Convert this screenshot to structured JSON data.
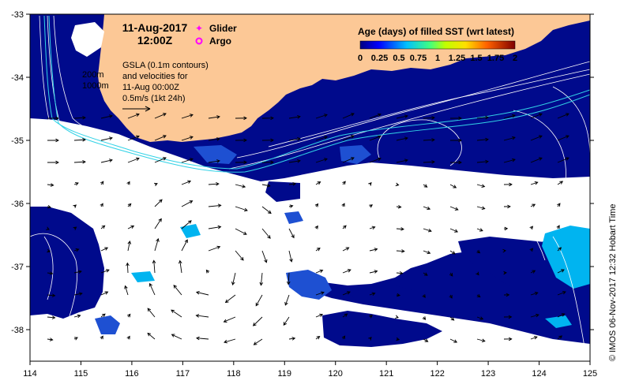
{
  "map": {
    "date_line": "11-Aug-2017",
    "time_line": "12:00Z",
    "legend_markers": [
      {
        "label": "Glider",
        "color": "#ff00ff",
        "symbol": "star-icon"
      },
      {
        "label": "Argo",
        "color": "#ff00ff",
        "symbol": "circle-icon"
      }
    ],
    "gsla_note": [
      "GSLA (0.1m contours)",
      "and velocities for",
      "11-Aug 00:00Z",
      "0.5m/s (1kt 24h)"
    ],
    "bathymetry_labels": [
      "200m",
      "1000m"
    ],
    "colorbar": {
      "title": "Age (days) of filled SST (wrt latest)",
      "tick_labels": [
        "0",
        "0.25",
        "0.5",
        "0.75",
        "1",
        "1.25",
        "1.5",
        "1.75",
        "2"
      ],
      "min": 0,
      "max": 2
    },
    "x_axis": {
      "ticks": [
        "114",
        "115",
        "116",
        "117",
        "118",
        "119",
        "120",
        "121",
        "122",
        "123",
        "124",
        "125"
      ],
      "min": 114,
      "max": 125
    },
    "y_axis": {
      "ticks": [
        "-33",
        "-34",
        "-35",
        "-36",
        "-37",
        "-38"
      ],
      "min": -38.5,
      "max": -33
    },
    "credit": "© IMOS 06-Nov-2017 12:32 Hobart Time",
    "colors": {
      "land": "#fcc896",
      "deep_water": "#000a8c",
      "mid_water": "#1e50d2",
      "cyan_water": "#00b4f0",
      "cloud": "#ffffff",
      "contour": "#ffffff",
      "bathymetry": "#32d2e6"
    }
  }
}
